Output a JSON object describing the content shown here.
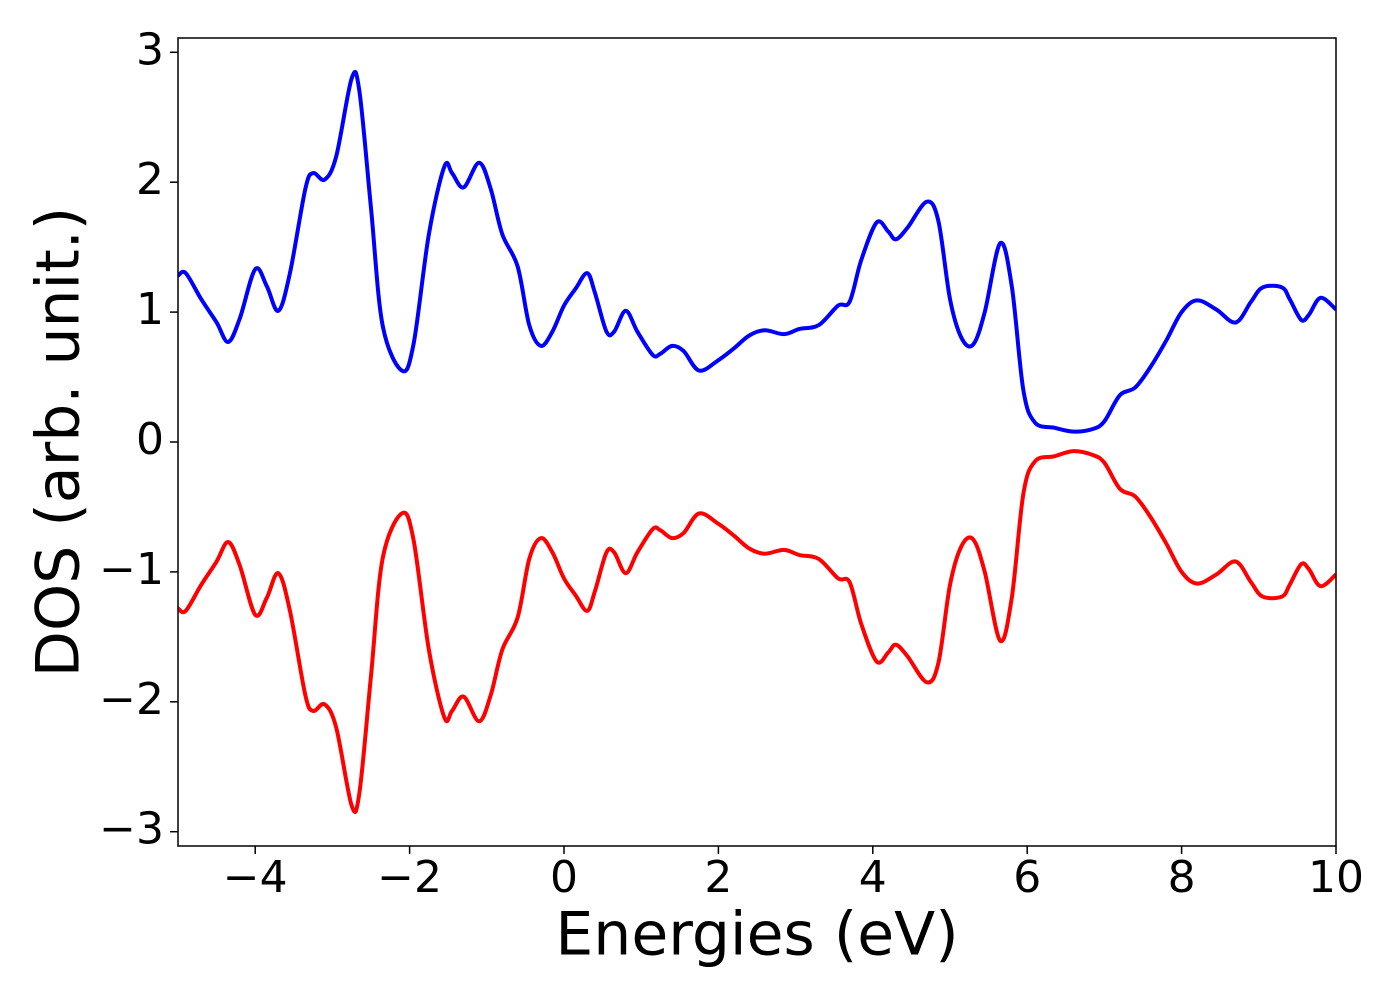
{
  "chart_data": {
    "type": "line",
    "xlabel": "Energies (eV)",
    "ylabel": "DOS (arb. unit.)",
    "x": [
      -5,
      -4.9,
      -4.7,
      -4.5,
      -4.35,
      -4.2,
      -4.0,
      -3.85,
      -3.7,
      -3.55,
      -3.35,
      -3.25,
      -3.1,
      -2.95,
      -2.75,
      -2.65,
      -2.5,
      -2.35,
      -2.1,
      -1.95,
      -1.75,
      -1.55,
      -1.45,
      -1.3,
      -1.1,
      -0.95,
      -0.8,
      -0.6,
      -0.45,
      -0.3,
      -0.15,
      0,
      0.15,
      0.3,
      0.4,
      0.55,
      0.65,
      0.8,
      0.95,
      1.15,
      1.25,
      1.4,
      1.55,
      1.75,
      2.0,
      2.2,
      2.4,
      2.6,
      2.85,
      3.05,
      3.3,
      3.55,
      3.7,
      3.85,
      4.05,
      4.2,
      4.3,
      4.45,
      4.7,
      4.85,
      5.0,
      5.15,
      5.3,
      5.45,
      5.65,
      5.8,
      5.95,
      6.1,
      6.35,
      6.6,
      6.85,
      7.0,
      7.2,
      7.4,
      7.6,
      7.8,
      8.0,
      8.2,
      8.45,
      8.7,
      8.9,
      9.05,
      9.3,
      9.4,
      9.55,
      9.65,
      9.8,
      10
    ],
    "series": [
      {
        "color": "#0000ff",
        "values": [
          1.28,
          1.3,
          1.1,
          0.92,
          0.77,
          0.95,
          1.33,
          1.2,
          1.01,
          1.3,
          1.95,
          2.07,
          2.02,
          2.2,
          2.8,
          2.7,
          1.8,
          0.9,
          0.55,
          0.75,
          1.6,
          2.12,
          2.07,
          1.96,
          2.15,
          1.95,
          1.6,
          1.35,
          0.9,
          0.74,
          0.85,
          1.05,
          1.18,
          1.3,
          1.15,
          0.85,
          0.85,
          1.01,
          0.85,
          0.67,
          0.68,
          0.74,
          0.7,
          0.55,
          0.63,
          0.72,
          0.82,
          0.86,
          0.83,
          0.87,
          0.9,
          1.05,
          1.08,
          1.4,
          1.69,
          1.62,
          1.56,
          1.65,
          1.85,
          1.7,
          1.1,
          0.8,
          0.75,
          1.0,
          1.53,
          1.2,
          0.4,
          0.15,
          0.11,
          0.08,
          0.1,
          0.16,
          0.36,
          0.42,
          0.58,
          0.78,
          1.0,
          1.09,
          1.02,
          0.92,
          1.08,
          1.19,
          1.19,
          1.1,
          0.94,
          0.98,
          1.11,
          1.02
        ]
      },
      {
        "color": "#ff0000",
        "values": [
          -1.28,
          -1.3,
          -1.1,
          -0.92,
          -0.77,
          -0.95,
          -1.33,
          -1.2,
          -1.01,
          -1.3,
          -1.95,
          -2.07,
          -2.02,
          -2.2,
          -2.8,
          -2.7,
          -1.8,
          -0.9,
          -0.55,
          -0.75,
          -1.6,
          -2.12,
          -2.07,
          -1.96,
          -2.15,
          -1.95,
          -1.6,
          -1.35,
          -0.9,
          -0.74,
          -0.85,
          -1.05,
          -1.18,
          -1.3,
          -1.15,
          -0.85,
          -0.85,
          -1.01,
          -0.85,
          -0.67,
          -0.68,
          -0.74,
          -0.7,
          -0.55,
          -0.63,
          -0.72,
          -0.82,
          -0.86,
          -0.83,
          -0.87,
          -0.9,
          -1.05,
          -1.08,
          -1.4,
          -1.69,
          -1.62,
          -1.56,
          -1.65,
          -1.85,
          -1.7,
          -1.1,
          -0.8,
          -0.75,
          -1.0,
          -1.53,
          -1.2,
          -0.4,
          -0.15,
          -0.11,
          -0.07,
          -0.1,
          -0.16,
          -0.36,
          -0.42,
          -0.58,
          -0.78,
          -1.0,
          -1.09,
          -1.02,
          -0.92,
          -1.08,
          -1.19,
          -1.19,
          -1.1,
          -0.94,
          -0.98,
          -1.11,
          -1.02
        ]
      }
    ],
    "xlim": [
      -5,
      10
    ],
    "xticks": [
      {
        "value": -4,
        "label": "−4"
      },
      {
        "value": -2,
        "label": "−2"
      },
      0,
      2,
      4,
      6,
      8,
      10
    ],
    "ylim": [
      -3.11,
      3.11
    ],
    "yticks": [
      {
        "value": -3,
        "label": "−3"
      },
      {
        "value": -2,
        "label": "−2"
      },
      {
        "value": -1,
        "label": "−1"
      },
      0,
      1,
      2,
      3
    ]
  }
}
